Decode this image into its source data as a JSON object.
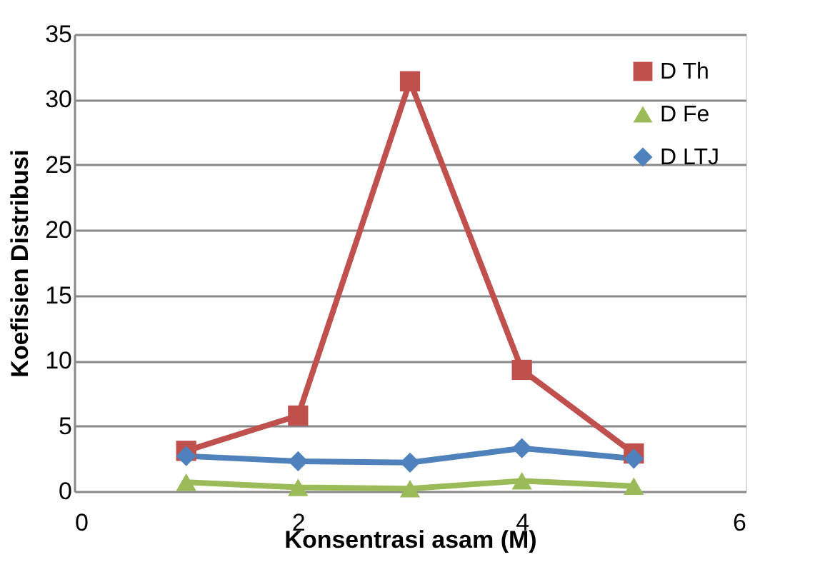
{
  "chart_data": {
    "type": "line",
    "xlabel": "Konsentrasi asam (M)",
    "ylabel": "Koefisien Distribusi",
    "x": [
      1,
      2,
      3,
      4,
      5
    ],
    "series": [
      {
        "name": "D Th",
        "color": "#c0504d",
        "marker": "square",
        "values": [
          3.1,
          5.8,
          31.4,
          9.3,
          2.9
        ]
      },
      {
        "name": "D Fe",
        "color": "#9bbb59",
        "marker": "triangle",
        "values": [
          0.7,
          0.3,
          0.2,
          0.8,
          0.4
        ]
      },
      {
        "name": "D LTJ",
        "color": "#4f81bd",
        "marker": "diamond",
        "values": [
          2.7,
          2.3,
          2.2,
          3.3,
          2.5
        ]
      }
    ],
    "xlim": [
      0,
      6
    ],
    "xticks": [
      0,
      2,
      4,
      6
    ],
    "ylim": [
      0,
      35
    ],
    "yticks": [
      0,
      5,
      10,
      15,
      20,
      25,
      30,
      35
    ],
    "grid": "y",
    "legend": "top right",
    "line_style": "solid"
  }
}
